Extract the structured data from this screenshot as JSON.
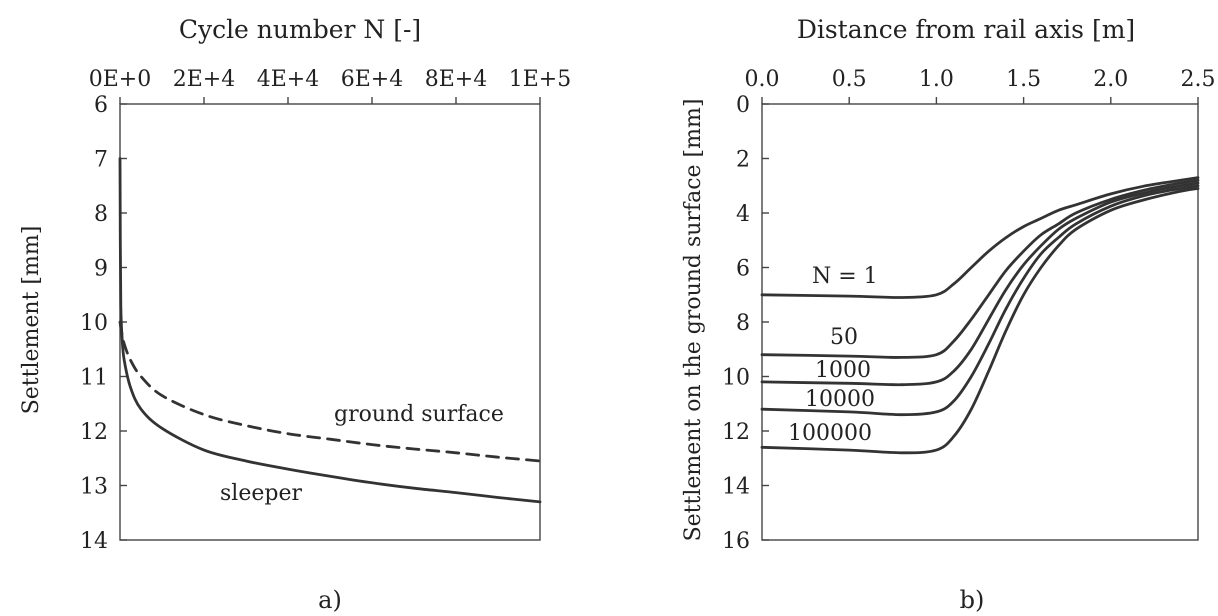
{
  "chart_data": [
    {
      "type": "line",
      "panel_label": "a)",
      "xlabel": "Cycle number  N  [-]",
      "ylabel": "Settlement  [mm]",
      "xaxis_position": "top",
      "yaxis_inverted": true,
      "xlim": [
        0,
        100000
      ],
      "ylim": [
        6,
        14
      ],
      "x_ticks": [
        0,
        20000,
        40000,
        60000,
        80000,
        100000
      ],
      "x_tick_labels": [
        "0E+0",
        "2E+4",
        "4E+4",
        "6E+4",
        "8E+4",
        "1E+5"
      ],
      "y_ticks": [
        6,
        7,
        8,
        9,
        10,
        11,
        12,
        13,
        14
      ],
      "y_tick_labels": [
        "6",
        "7",
        "8",
        "9",
        "10",
        "11",
        "12",
        "13",
        "14"
      ],
      "series": [
        {
          "name": "ground surface",
          "style": "dashed",
          "x": [
            0,
            300,
            1000,
            2500,
            5000,
            10000,
            20000,
            30000,
            40000,
            50000,
            60000,
            70000,
            80000,
            90000,
            100000
          ],
          "y": [
            10.0,
            10.15,
            10.4,
            10.7,
            11.0,
            11.35,
            11.7,
            11.9,
            12.05,
            12.15,
            12.25,
            12.33,
            12.4,
            12.48,
            12.55
          ]
        },
        {
          "name": "sleeper",
          "style": "solid",
          "x": [
            0,
            80,
            200,
            500,
            1000,
            2500,
            5000,
            10000,
            20000,
            30000,
            40000,
            50000,
            60000,
            70000,
            80000,
            90000,
            100000
          ],
          "y": [
            7.0,
            8.5,
            9.7,
            10.3,
            10.7,
            11.2,
            11.6,
            11.95,
            12.35,
            12.55,
            12.7,
            12.83,
            12.95,
            13.05,
            13.13,
            13.22,
            13.3
          ]
        }
      ]
    },
    {
      "type": "line",
      "panel_label": "b)",
      "xlabel": "Distance from rail axis  [m]",
      "ylabel": "Settlement on the ground surface  [mm]",
      "xaxis_position": "top",
      "yaxis_inverted": true,
      "xlim": [
        0,
        2.5
      ],
      "ylim": [
        0,
        16
      ],
      "x_ticks": [
        0,
        0.5,
        1.0,
        1.5,
        2.0,
        2.5
      ],
      "x_tick_labels": [
        "0.0",
        "0.5",
        "1.0",
        "1.5",
        "2.0",
        "2.5"
      ],
      "y_ticks": [
        0,
        2,
        4,
        6,
        8,
        10,
        12,
        14,
        16
      ],
      "y_tick_labels": [
        "0",
        "2",
        "4",
        "6",
        "8",
        "10",
        "12",
        "14",
        "16"
      ],
      "series": [
        {
          "name": "N = 1",
          "x": [
            0,
            0.5,
            0.8,
            1.0,
            1.1,
            1.2,
            1.3,
            1.4,
            1.5,
            1.6,
            1.7,
            1.8,
            2.0,
            2.2,
            2.4,
            2.5
          ],
          "y": [
            7.0,
            7.05,
            7.1,
            7.0,
            6.6,
            6.0,
            5.4,
            4.9,
            4.5,
            4.2,
            3.9,
            3.7,
            3.3,
            3.0,
            2.8,
            2.7
          ]
        },
        {
          "name": "50",
          "x": [
            0,
            0.5,
            0.8,
            1.0,
            1.1,
            1.2,
            1.3,
            1.4,
            1.5,
            1.6,
            1.7,
            1.8,
            2.0,
            2.2,
            2.4,
            2.5
          ],
          "y": [
            9.2,
            9.25,
            9.3,
            9.2,
            8.7,
            7.9,
            7.0,
            6.1,
            5.4,
            4.8,
            4.4,
            4.0,
            3.5,
            3.15,
            2.9,
            2.8
          ]
        },
        {
          "name": "1000",
          "x": [
            0,
            0.5,
            0.8,
            1.0,
            1.1,
            1.2,
            1.3,
            1.4,
            1.5,
            1.6,
            1.7,
            1.8,
            2.0,
            2.2,
            2.4,
            2.5
          ],
          "y": [
            10.2,
            10.25,
            10.3,
            10.2,
            9.8,
            9.0,
            7.9,
            6.8,
            5.9,
            5.2,
            4.6,
            4.2,
            3.6,
            3.25,
            3.0,
            2.9
          ]
        },
        {
          "name": "10000",
          "x": [
            0,
            0.5,
            0.8,
            1.0,
            1.1,
            1.2,
            1.3,
            1.4,
            1.5,
            1.6,
            1.7,
            1.8,
            2.0,
            2.2,
            2.4,
            2.5
          ],
          "y": [
            11.2,
            11.3,
            11.4,
            11.3,
            10.9,
            10.0,
            8.8,
            7.5,
            6.4,
            5.5,
            4.9,
            4.4,
            3.75,
            3.35,
            3.1,
            3.0
          ]
        },
        {
          "name": "100000",
          "x": [
            0,
            0.5,
            0.8,
            1.0,
            1.1,
            1.2,
            1.3,
            1.4,
            1.5,
            1.6,
            1.7,
            1.8,
            2.0,
            2.2,
            2.4,
            2.5
          ],
          "y": [
            12.6,
            12.7,
            12.8,
            12.7,
            12.2,
            11.2,
            9.8,
            8.3,
            7.0,
            6.0,
            5.2,
            4.6,
            3.9,
            3.5,
            3.2,
            3.1
          ]
        }
      ],
      "curve_labels": [
        {
          "text": "N = 1"
        },
        {
          "text": "50"
        },
        {
          "text": "1000"
        },
        {
          "text": "10000"
        },
        {
          "text": "100000"
        }
      ]
    }
  ],
  "annotations": {
    "ground_surface": "ground surface",
    "sleeper": "sleeper"
  }
}
